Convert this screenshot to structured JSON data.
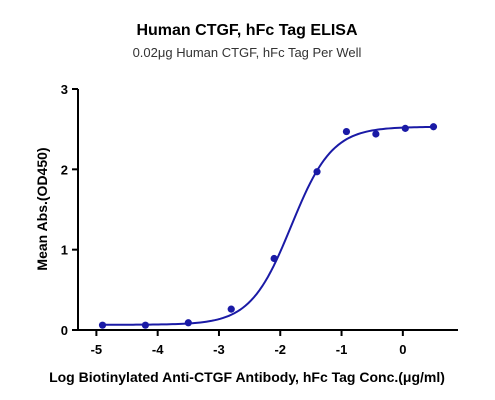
{
  "chart_data": {
    "type": "scatter",
    "title": "Human CTGF, hFc Tag ELISA",
    "subtitle": "0.02μg Human CTGF, hFc Tag Per Well",
    "xlabel": "Log Biotinylated Anti-CTGF Antibody, hFc Tag Conc.(μg/ml)",
    "ylabel": "Mean Abs.(OD450)",
    "xlim": [
      -5.3,
      0.9
    ],
    "ylim": [
      0,
      3
    ],
    "xticks": [
      -5,
      -4,
      -3,
      -2,
      -1,
      0
    ],
    "yticks": [
      0,
      1,
      2,
      3
    ],
    "grid": false,
    "legend": "none",
    "color": "#1a1aa6",
    "series": [
      {
        "points": [
          {
            "x": -4.9,
            "y": 0.06
          },
          {
            "x": -4.2,
            "y": 0.06
          },
          {
            "x": -3.5,
            "y": 0.09
          },
          {
            "x": -2.8,
            "y": 0.26
          },
          {
            "x": -2.1,
            "y": 0.89
          },
          {
            "x": -1.4,
            "y": 1.97
          },
          {
            "x": -0.92,
            "y": 2.47
          },
          {
            "x": -0.44,
            "y": 2.44
          },
          {
            "x": 0.04,
            "y": 2.51
          },
          {
            "x": 0.5,
            "y": 2.53
          }
        ],
        "fit": {
          "model": "4PL",
          "bottom": 0.065,
          "top": 2.53,
          "logEC50": -1.82,
          "hill": 1.3
        }
      }
    ]
  }
}
